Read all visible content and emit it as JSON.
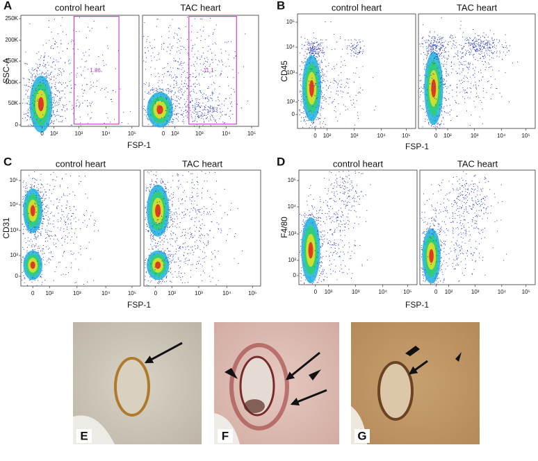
{
  "panels": [
    {
      "label": "A",
      "y_label": "SSC-A",
      "x_label": "FSP-1",
      "y_ticks": [
        "250K",
        "200K",
        "150K",
        "100K",
        "50K",
        "0"
      ],
      "x_ticks": [
        "0",
        "10²",
        "10³",
        "10⁴",
        "10⁵"
      ],
      "plots": [
        {
          "title": "control heart",
          "gate": "1.86"
        },
        {
          "title": "TAC heart",
          "gate": "11.1"
        }
      ]
    },
    {
      "label": "B",
      "y_label": "CD45",
      "x_label": "FSP-1",
      "y_ticks": [
        "10⁵",
        "10⁴",
        "10³",
        "10²",
        "0"
      ],
      "x_ticks": [
        "0",
        "10²",
        "10³",
        "10⁴",
        "10⁵"
      ],
      "plots": [
        {
          "title": "control heart"
        },
        {
          "title": "TAC heart"
        }
      ]
    },
    {
      "label": "C",
      "y_label": "CD31",
      "x_label": "FSP-1",
      "y_ticks": [
        "10⁵",
        "10⁴",
        "10³",
        "10²",
        "0"
      ],
      "x_ticks": [
        "0",
        "10²",
        "10³",
        "10⁴",
        "10⁵"
      ],
      "plots": [
        {
          "title": "control heart"
        },
        {
          "title": "TAC heart"
        }
      ]
    },
    {
      "label": "D",
      "y_label": "F4/80",
      "x_label": "FSP-1",
      "y_ticks": [
        "10⁵",
        "10⁴",
        "10³",
        "10²",
        "0"
      ],
      "x_ticks": [
        "0",
        "10²",
        "10³",
        "10⁴",
        "10⁵"
      ],
      "plots": [
        {
          "title": "control heart"
        },
        {
          "title": "TAC heart"
        }
      ]
    }
  ],
  "micrographs": [
    {
      "label": "E"
    },
    {
      "label": "F"
    },
    {
      "label": "G"
    }
  ]
}
